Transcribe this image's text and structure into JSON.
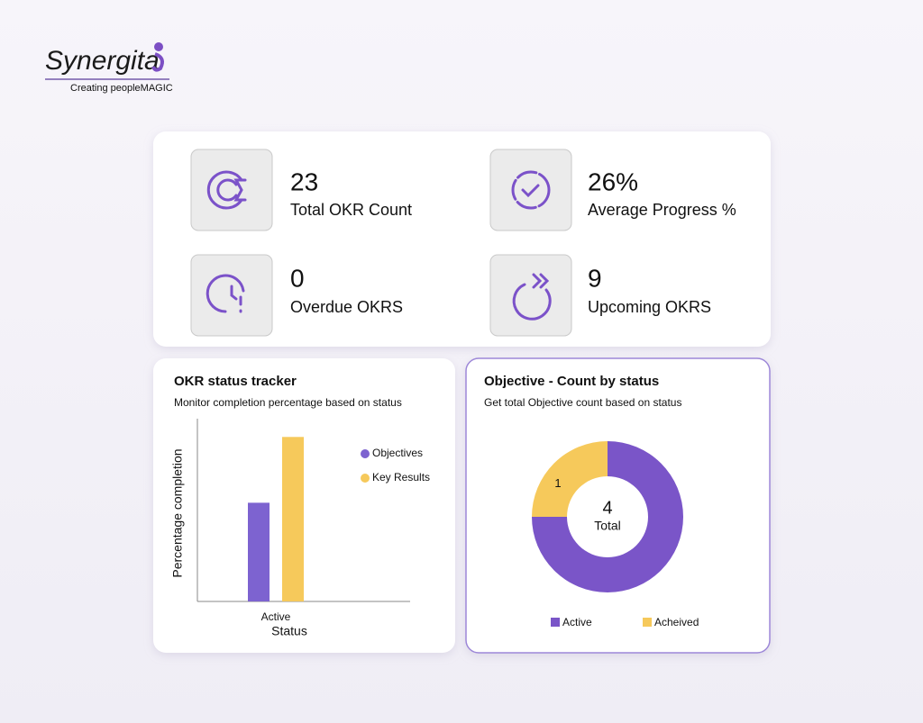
{
  "logo": {
    "name": "Synergita",
    "tagline": "Creating peopleMAGIC"
  },
  "stats": [
    {
      "value": "23",
      "label": "Total OKR Count"
    },
    {
      "value": "26%",
      "label": "Average Progress %"
    },
    {
      "value": "0",
      "label": "Overdue OKRS"
    },
    {
      "value": "9",
      "label": "Upcoming OKRS"
    }
  ],
  "chart_data": [
    {
      "type": "bar",
      "title": "OKR status tracker",
      "subtitle": "Monitor completion percentage based on status",
      "x_label": "Status",
      "y_label": "Percentage completion",
      "categories": [
        "Active"
      ],
      "series": [
        {
          "name": "Objectives",
          "color": "#7d63d0",
          "values": [
            54
          ]
        },
        {
          "name": "Key Results",
          "color": "#f6c95b",
          "values": [
            90
          ]
        }
      ],
      "ylim": [
        0,
        100
      ]
    },
    {
      "type": "pie",
      "title": "Objective - Count by status",
      "subtitle": "Get total Objective count based on status",
      "categories": [
        "Active",
        "Acheived"
      ],
      "values": [
        3,
        1
      ],
      "colors": [
        "#7a55c8",
        "#f6c95b"
      ],
      "center_value": 4,
      "center_label": "Total"
    }
  ]
}
